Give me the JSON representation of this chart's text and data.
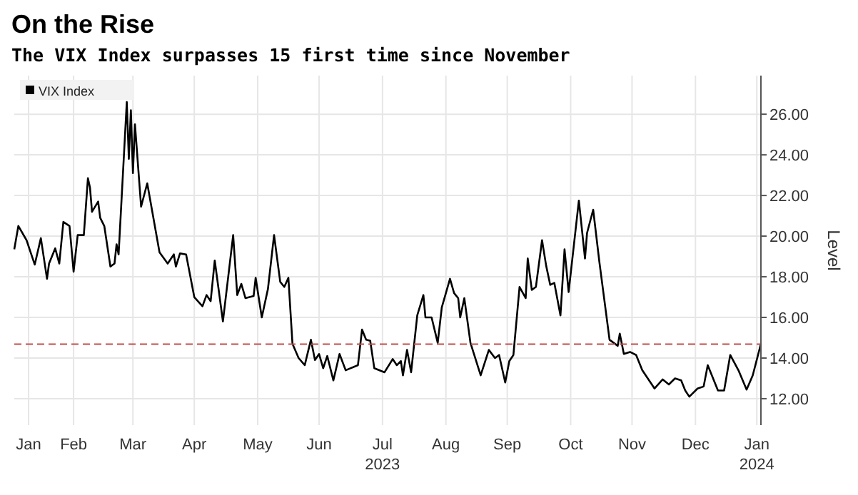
{
  "chart_data": {
    "type": "line",
    "title": "On the Rise",
    "subtitle": "The VIX Index surpasses 15 first time since November",
    "ylabel": "Level",
    "x": [
      "2023-01-17",
      "2023-01-19",
      "2023-01-23",
      "2023-01-25",
      "2023-01-27",
      "2023-01-30",
      "2023-02-02",
      "2023-02-03",
      "2023-02-06",
      "2023-02-08",
      "2023-02-10",
      "2023-02-13",
      "2023-02-15",
      "2023-02-17",
      "2023-02-20",
      "2023-02-22",
      "2023-02-23",
      "2023-02-24",
      "2023-02-27",
      "2023-02-28",
      "2023-03-02",
      "2023-03-05",
      "2023-03-07",
      "2023-03-08",
      "2023-03-09",
      "2023-03-13",
      "2023-03-14",
      "2023-03-15",
      "2023-03-16",
      "2023-03-17",
      "2023-03-20",
      "2023-03-23",
      "2023-03-29",
      "2023-04-02",
      "2023-04-05",
      "2023-04-06",
      "2023-04-08",
      "2023-04-11",
      "2023-04-15",
      "2023-04-19",
      "2023-04-21",
      "2023-04-23",
      "2023-04-25",
      "2023-04-29",
      "2023-05-04",
      "2023-05-06",
      "2023-05-08",
      "2023-05-10",
      "2023-05-14",
      "2023-05-15",
      "2023-05-18",
      "2023-05-21",
      "2023-05-24",
      "2023-05-27",
      "2023-05-29",
      "2023-05-31",
      "2023-06-02",
      "2023-06-05",
      "2023-06-08",
      "2023-06-11",
      "2023-06-13",
      "2023-06-15",
      "2023-06-17",
      "2023-06-19",
      "2023-06-22",
      "2023-06-25",
      "2023-06-28",
      "2023-07-04",
      "2023-07-06",
      "2023-07-08",
      "2023-07-10",
      "2023-07-12",
      "2023-07-17",
      "2023-07-21",
      "2023-07-23",
      "2023-07-25",
      "2023-07-26",
      "2023-07-28",
      "2023-07-30",
      "2023-08-02",
      "2023-08-05",
      "2023-08-06",
      "2023-08-09",
      "2023-08-12",
      "2023-08-14",
      "2023-08-18",
      "2023-08-20",
      "2023-08-22",
      "2023-08-23",
      "2023-08-25",
      "2023-08-28",
      "2023-09-02",
      "2023-09-06",
      "2023-09-09",
      "2023-09-11",
      "2023-09-14",
      "2023-09-16",
      "2023-09-18",
      "2023-09-21",
      "2023-09-24",
      "2023-09-25",
      "2023-09-27",
      "2023-09-29",
      "2023-10-02",
      "2023-10-04",
      "2023-10-06",
      "2023-10-08",
      "2023-10-11",
      "2023-10-13",
      "2023-10-15",
      "2023-10-20",
      "2023-10-23",
      "2023-10-24",
      "2023-10-27",
      "2023-10-30",
      "2023-11-04",
      "2023-11-08",
      "2023-11-09",
      "2023-11-11",
      "2023-11-14",
      "2023-11-17",
      "2023-11-20",
      "2023-11-26",
      "2023-11-30",
      "2023-12-03",
      "2023-12-06",
      "2023-12-09",
      "2023-12-11",
      "2023-12-13",
      "2023-12-17",
      "2023-12-20",
      "2023-12-22",
      "2023-12-27",
      "2023-12-30",
      "2024-01-02",
      "2024-01-06",
      "2024-01-10",
      "2024-01-13",
      "2024-01-17"
    ],
    "series": [
      {
        "name": "VIX Index",
        "color": "#000000",
        "values": [
          19.35,
          20.5,
          19.8,
          19.2,
          18.6,
          19.9,
          17.9,
          18.65,
          19.4,
          18.65,
          20.7,
          20.5,
          18.25,
          20.05,
          20.05,
          22.85,
          22.4,
          21.2,
          21.7,
          20.9,
          20.5,
          18.5,
          18.65,
          19.6,
          19.1,
          26.6,
          23.8,
          26.2,
          23.1,
          25.5,
          21.45,
          22.6,
          19.2,
          18.65,
          19.1,
          18.5,
          19.15,
          19.1,
          17.0,
          16.55,
          17.1,
          16.8,
          18.8,
          15.8,
          20.05,
          17.1,
          17.65,
          16.95,
          17.05,
          17.95,
          16.0,
          17.4,
          20.05,
          17.75,
          17.5,
          17.95,
          14.7,
          14.0,
          13.65,
          14.9,
          13.9,
          14.2,
          13.5,
          14.1,
          12.9,
          14.2,
          13.4,
          13.65,
          15.4,
          14.9,
          14.85,
          13.5,
          13.3,
          13.95,
          13.65,
          13.85,
          13.15,
          14.4,
          13.3,
          16.1,
          17.1,
          16.0,
          16.0,
          14.75,
          16.5,
          17.9,
          17.2,
          16.95,
          16.0,
          16.95,
          14.75,
          13.15,
          14.4,
          14.0,
          14.15,
          12.8,
          13.85,
          14.15,
          17.5,
          16.95,
          18.9,
          17.35,
          17.5,
          19.8,
          18.55,
          17.6,
          17.7,
          16.1,
          19.35,
          17.25,
          21.75,
          18.9,
          20.15,
          21.3,
          18.75,
          14.9,
          14.6,
          15.2,
          14.2,
          14.3,
          14.15,
          13.4,
          12.5,
          12.95,
          12.7,
          13.0,
          12.9,
          12.4,
          12.1,
          12.5,
          12.6,
          13.65,
          12.4,
          12.4,
          14.15,
          13.4,
          12.45,
          13.15,
          14.7
        ]
      }
    ],
    "xlim": [
      "2023-01-17",
      "2024-01-17"
    ],
    "xticks": [
      {
        "value": "2023-01-24",
        "label": "Jan"
      },
      {
        "value": "2023-02-15",
        "label": "Feb"
      },
      {
        "value": "2023-03-16",
        "label": "Mar"
      },
      {
        "value": "2023-04-15",
        "label": "Apr"
      },
      {
        "value": "2023-05-16",
        "label": "May"
      },
      {
        "value": "2023-06-15",
        "label": "Jun"
      },
      {
        "value": "2023-07-16",
        "label": "Jul\n2023"
      },
      {
        "value": "2023-08-16",
        "label": "Aug"
      },
      {
        "value": "2023-09-15",
        "label": "Sep"
      },
      {
        "value": "2023-10-16",
        "label": "Oct"
      },
      {
        "value": "2023-11-15",
        "label": "Nov"
      },
      {
        "value": "2023-12-16",
        "label": "Dec"
      },
      {
        "value": "2024-01-15",
        "label": "Jan\n2024"
      }
    ],
    "ylim": [
      10.7,
      27.9
    ],
    "yticks": [
      {
        "value": 12,
        "label": "12.00"
      },
      {
        "value": 14,
        "label": "14.00"
      },
      {
        "value": 16,
        "label": "16.00"
      },
      {
        "value": 18,
        "label": "18.00"
      },
      {
        "value": 20,
        "label": "20.00"
      },
      {
        "value": 22,
        "label": "22.00"
      },
      {
        "value": 24,
        "label": "24.00"
      },
      {
        "value": 26,
        "label": "26.00"
      }
    ],
    "ref_lines": [
      {
        "axis": "y",
        "value": 14.68,
        "color": "#c0504d",
        "line_style": "dashed"
      }
    ],
    "grid": true,
    "legend": "top left",
    "marker": "none",
    "line_style": "solid"
  }
}
